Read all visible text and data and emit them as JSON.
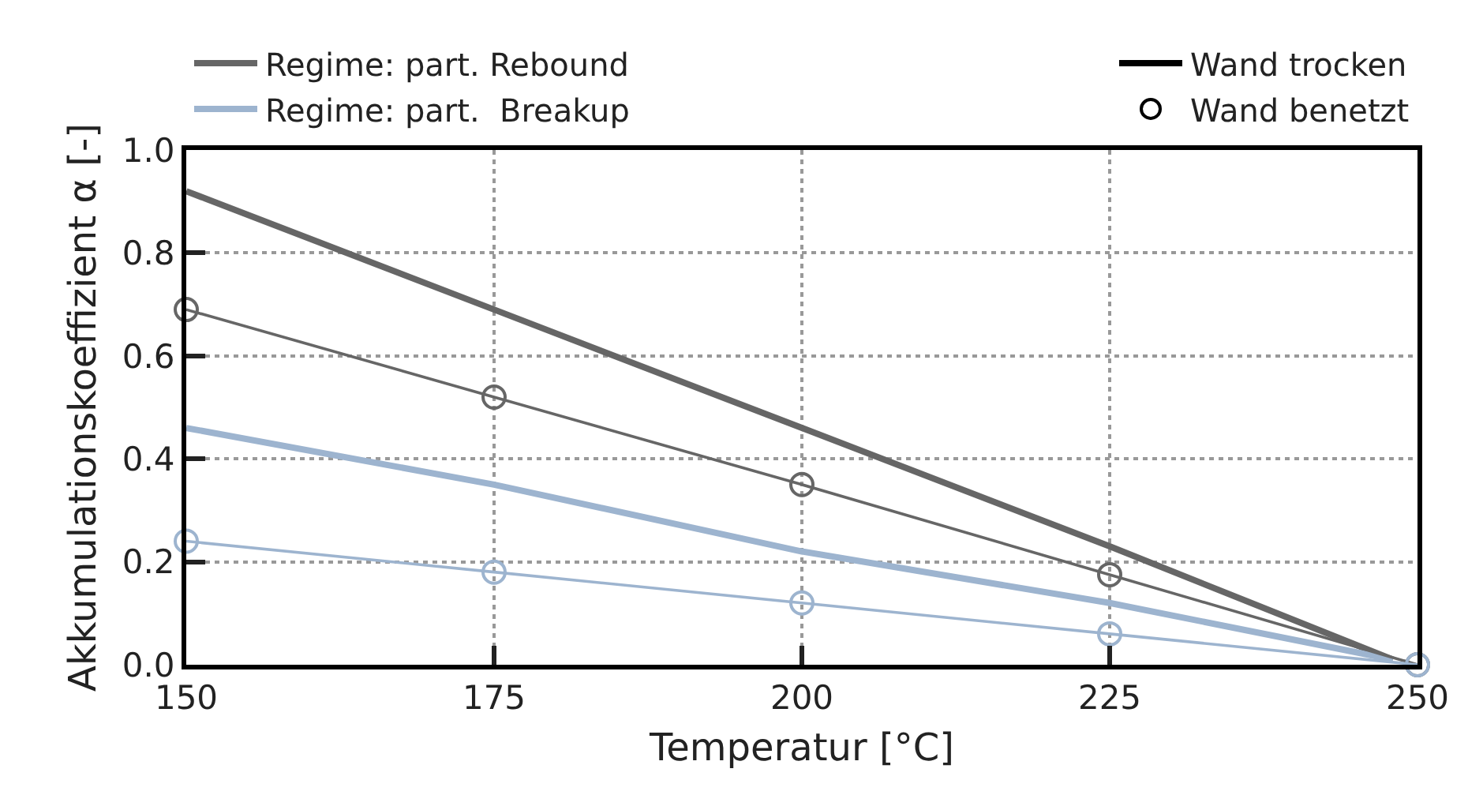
{
  "chart_data": {
    "type": "line",
    "xlabel": "Temperatur [°C]",
    "ylabel": "Akkumulationskoeffizient α [-]",
    "xlim": [
      150,
      250
    ],
    "xticks": [
      150,
      175,
      200,
      225,
      250
    ],
    "ylim": [
      0,
      1
    ],
    "yticks": [
      {
        "value": 0,
        "label": "0.0"
      },
      0.2,
      0.4,
      0.6,
      0.8,
      {
        "value": 1,
        "label": "1.0"
      }
    ],
    "grid": true,
    "legend": "top",
    "series": [
      {
        "name": "Regime: part. Rebound",
        "color": "#666666",
        "x": [
          150,
          175,
          200,
          225,
          248
        ],
        "values": [
          0.92,
          0.69,
          0.46,
          0.23,
          0.01
        ]
      },
      {
        "name": "Regime: part.  Breakup",
        "color": "#9db4cf",
        "x": [
          150,
          175,
          200,
          225,
          248
        ],
        "values": [
          0.46,
          0.35,
          0.22,
          0.12,
          0.01
        ]
      },
      {
        "color": "#666666",
        "marker": "circle",
        "x": [
          150,
          175,
          200,
          225,
          250
        ],
        "values": [
          0.69,
          0.52,
          0.35,
          0.175,
          0.0
        ]
      },
      {
        "color": "#9db4cf",
        "marker": "circle",
        "x": [
          150,
          175,
          200,
          225,
          250
        ],
        "values": [
          0.24,
          0.18,
          0.12,
          0.06,
          0.0
        ]
      }
    ],
    "annotations": [
      "Wand trocken",
      "Wand benetzt"
    ]
  }
}
